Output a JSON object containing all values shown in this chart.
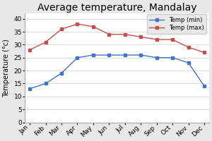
{
  "title": "Average temperature, Mandalay",
  "months": [
    "Jan",
    "Feb",
    "Mar",
    "Apr",
    "May",
    "Jun",
    "Jul",
    "Aug",
    "Sep",
    "Oct",
    "Nov",
    "Dec"
  ],
  "temp_min": [
    13,
    15,
    19,
    25,
    26,
    26,
    26,
    26,
    25,
    25,
    23,
    14
  ],
  "temp_max": [
    28,
    31,
    36,
    38,
    37,
    34,
    34,
    33,
    32,
    32,
    29,
    27
  ],
  "min_color": "#4472C4",
  "max_color": "#C0504D",
  "ylabel": "Temperature (°c)",
  "ylim": [
    0,
    42
  ],
  "yticks": [
    0,
    5,
    10,
    15,
    20,
    25,
    30,
    35,
    40
  ],
  "legend_min": "Temp (min)",
  "legend_max": "Temp (max)",
  "bg_color": "#E8E8E8",
  "plot_bg": "#FFFFFF",
  "title_fontsize": 10,
  "label_fontsize": 7,
  "tick_fontsize": 6.5
}
